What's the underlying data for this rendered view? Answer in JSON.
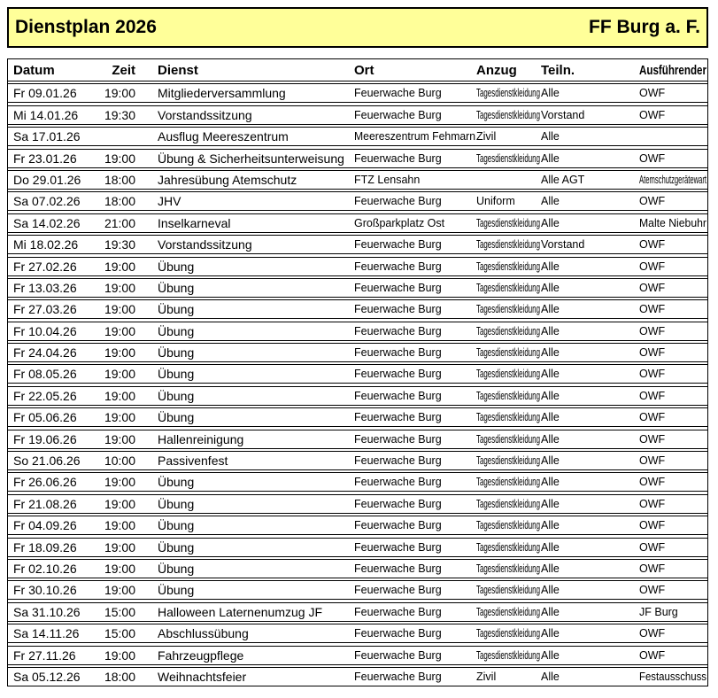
{
  "banner": {
    "title": "Dienstplan 2026",
    "org": "FF Burg a. F.",
    "bg": "#FFFF99"
  },
  "table": {
    "columns": [
      {
        "key": "datum",
        "label": "Datum"
      },
      {
        "key": "zeit",
        "label": "Zeit"
      },
      {
        "key": "dienst",
        "label": "Dienst"
      },
      {
        "key": "ort",
        "label": "Ort"
      },
      {
        "key": "anzug",
        "label": "Anzug"
      },
      {
        "key": "teiln",
        "label": "Teiln."
      },
      {
        "key": "ausfuehrender",
        "label": "Ausführender"
      }
    ],
    "rows": [
      {
        "datum": "Fr 09.01.26",
        "zeit": "19:00",
        "dienst": "Mitgliederversammlung",
        "ort": "Feuerwache Burg",
        "anzug": "Tagesdienstkleidung",
        "teiln": "Alle",
        "ausfuehrender": "OWF"
      },
      {
        "datum": "Mi 14.01.26",
        "zeit": "19:30",
        "dienst": "Vorstandssitzung",
        "ort": "Feuerwache Burg",
        "anzug": "Tagesdienstkleidung",
        "teiln": "Vorstand",
        "ausfuehrender": "OWF"
      },
      {
        "datum": "Sa 17.01.26",
        "zeit": "",
        "dienst": "Ausflug Meereszentrum",
        "ort": "Meereszentrum Fehmarn",
        "anzug": "Zivil",
        "teiln": "Alle",
        "ausfuehrender": ""
      },
      {
        "datum": "Fr 23.01.26",
        "zeit": "19:00",
        "dienst": "Übung & Sicherheitsunterweisung",
        "ort": "Feuerwache Burg",
        "anzug": "Tagesdienstkleidung",
        "teiln": "Alle",
        "ausfuehrender": "OWF"
      },
      {
        "datum": "Do 29.01.26",
        "zeit": "18:00",
        "dienst": "Jahresübung Atemschutz",
        "ort": "FTZ Lensahn",
        "anzug": "",
        "teiln": "Alle AGT",
        "ausfuehrender": "Atemschutzgerätewart"
      },
      {
        "datum": "Sa 07.02.26",
        "zeit": "18:00",
        "dienst": "JHV",
        "ort": "Feuerwache Burg",
        "anzug": "Uniform",
        "teiln": "Alle",
        "ausfuehrender": "OWF"
      },
      {
        "datum": "Sa 14.02.26",
        "zeit": "21:00",
        "dienst": "Inselkarneval",
        "ort": "Großparkplatz Ost",
        "anzug": "Tagesdienstkleidung",
        "teiln": "Alle",
        "ausfuehrender": "Malte Niebuhr"
      },
      {
        "datum": "Mi 18.02.26",
        "zeit": "19:30",
        "dienst": "Vorstandssitzung",
        "ort": "Feuerwache Burg",
        "anzug": "Tagesdienstkleidung",
        "teiln": "Vorstand",
        "ausfuehrender": "OWF"
      },
      {
        "datum": "Fr 27.02.26",
        "zeit": "19:00",
        "dienst": "Übung",
        "ort": "Feuerwache Burg",
        "anzug": "Tagesdienstkleidung",
        "teiln": "Alle",
        "ausfuehrender": "OWF"
      },
      {
        "datum": "Fr 13.03.26",
        "zeit": "19:00",
        "dienst": "Übung",
        "ort": "Feuerwache Burg",
        "anzug": "Tagesdienstkleidung",
        "teiln": "Alle",
        "ausfuehrender": "OWF"
      },
      {
        "datum": "Fr 27.03.26",
        "zeit": "19:00",
        "dienst": "Übung",
        "ort": "Feuerwache Burg",
        "anzug": "Tagesdienstkleidung",
        "teiln": "Alle",
        "ausfuehrender": "OWF"
      },
      {
        "datum": "Fr 10.04.26",
        "zeit": "19:00",
        "dienst": "Übung",
        "ort": "Feuerwache Burg",
        "anzug": "Tagesdienstkleidung",
        "teiln": "Alle",
        "ausfuehrender": "OWF"
      },
      {
        "datum": "Fr 24.04.26",
        "zeit": "19:00",
        "dienst": "Übung",
        "ort": "Feuerwache Burg",
        "anzug": "Tagesdienstkleidung",
        "teiln": "Alle",
        "ausfuehrender": "OWF"
      },
      {
        "datum": "Fr 08.05.26",
        "zeit": "19:00",
        "dienst": "Übung",
        "ort": "Feuerwache Burg",
        "anzug": "Tagesdienstkleidung",
        "teiln": "Alle",
        "ausfuehrender": "OWF"
      },
      {
        "datum": "Fr 22.05.26",
        "zeit": "19:00",
        "dienst": "Übung",
        "ort": "Feuerwache Burg",
        "anzug": "Tagesdienstkleidung",
        "teiln": "Alle",
        "ausfuehrender": "OWF"
      },
      {
        "datum": "Fr 05.06.26",
        "zeit": "19:00",
        "dienst": "Übung",
        "ort": "Feuerwache Burg",
        "anzug": "Tagesdienstkleidung",
        "teiln": "Alle",
        "ausfuehrender": "OWF"
      },
      {
        "datum": "Fr 19.06.26",
        "zeit": "19:00",
        "dienst": "Hallenreinigung",
        "ort": "Feuerwache Burg",
        "anzug": "Tagesdienstkleidung",
        "teiln": "Alle",
        "ausfuehrender": "OWF"
      },
      {
        "datum": "So 21.06.26",
        "zeit": "10:00",
        "dienst": "Passivenfest",
        "ort": "Feuerwache Burg",
        "anzug": "Tagesdienstkleidung",
        "teiln": "Alle",
        "ausfuehrender": "OWF"
      },
      {
        "datum": "Fr 26.06.26",
        "zeit": "19:00",
        "dienst": "Übung",
        "ort": "Feuerwache Burg",
        "anzug": "Tagesdienstkleidung",
        "teiln": "Alle",
        "ausfuehrender": "OWF"
      },
      {
        "datum": "Fr 21.08.26",
        "zeit": "19:00",
        "dienst": "Übung",
        "ort": "Feuerwache Burg",
        "anzug": "Tagesdienstkleidung",
        "teiln": "Alle",
        "ausfuehrender": "OWF"
      },
      {
        "datum": "Fr 04.09.26",
        "zeit": "19:00",
        "dienst": "Übung",
        "ort": "Feuerwache Burg",
        "anzug": "Tagesdienstkleidung",
        "teiln": "Alle",
        "ausfuehrender": "OWF"
      },
      {
        "datum": "Fr 18.09.26",
        "zeit": "19:00",
        "dienst": "Übung",
        "ort": "Feuerwache Burg",
        "anzug": "Tagesdienstkleidung",
        "teiln": "Alle",
        "ausfuehrender": "OWF"
      },
      {
        "datum": "Fr 02.10.26",
        "zeit": "19:00",
        "dienst": "Übung",
        "ort": "Feuerwache Burg",
        "anzug": "Tagesdienstkleidung",
        "teiln": "Alle",
        "ausfuehrender": "OWF"
      },
      {
        "datum": "Fr 30.10.26",
        "zeit": "19:00",
        "dienst": "Übung",
        "ort": "Feuerwache Burg",
        "anzug": "Tagesdienstkleidung",
        "teiln": "Alle",
        "ausfuehrender": "OWF"
      },
      {
        "datum": "Sa 31.10.26",
        "zeit": "15:00",
        "dienst": "Halloween Laternenumzug JF",
        "ort": "Feuerwache Burg",
        "anzug": "Tagesdienstkleidung",
        "teiln": "Alle",
        "ausfuehrender": "JF Burg"
      },
      {
        "datum": "Sa 14.11.26",
        "zeit": "15:00",
        "dienst": "Abschlussübung",
        "ort": "Feuerwache Burg",
        "anzug": "Tagesdienstkleidung",
        "teiln": "Alle",
        "ausfuehrender": "OWF"
      },
      {
        "datum": "Fr 27.11.26",
        "zeit": "19:00",
        "dienst": "Fahrzeugpflege",
        "ort": "Feuerwache Burg",
        "anzug": "Tagesdienstkleidung",
        "teiln": "Alle",
        "ausfuehrender": "OWF"
      },
      {
        "datum": "Sa 05.12.26",
        "zeit": "18:00",
        "dienst": "Weihnachtsfeier",
        "ort": "Feuerwache Burg",
        "anzug": "Zivil",
        "teiln": "Alle",
        "ausfuehrender": "Festausschuss"
      }
    ]
  }
}
